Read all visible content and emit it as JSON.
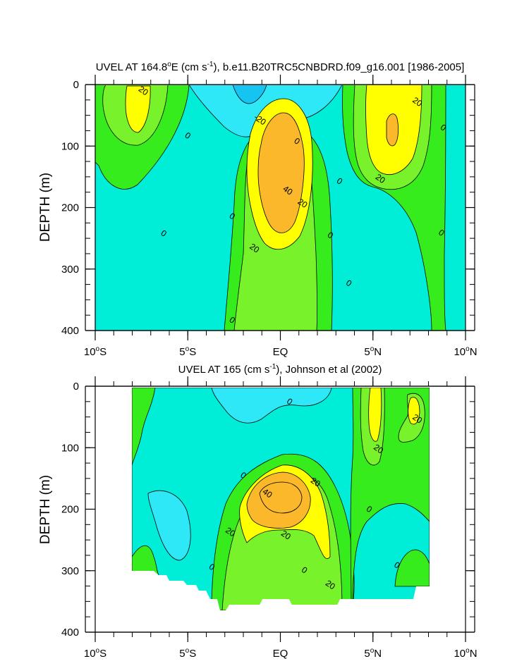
{
  "colors": {
    "c_neg20": "#16c4f2",
    "c_neg": "#2ee8f8",
    "c_0": "#00eed8",
    "c_10": "#36ec1c",
    "c_20": "#78f22a",
    "c_30": "#ffff00",
    "c_40": "#fbb82a",
    "line": "#000000"
  },
  "chart_data": [
    {
      "type": "contour",
      "id": "top",
      "title_prefix": "UVEL AT 164.8",
      "title_deg": "o",
      "title_mid": "E (cm s",
      "title_exp": "-1",
      "title_suffix": "), b.e11.B20TRC5CNBDRD.f09_g16.001 [1986-2005]",
      "ylabel": "DEPTH (m)",
      "ylim": [
        0,
        400
      ],
      "xlim": [
        -10,
        10
      ],
      "yticks": [
        "0",
        "100",
        "200",
        "300",
        "400"
      ],
      "xticks": [
        {
          "num": "10",
          "deg": "o",
          "hem": "S"
        },
        {
          "num": "5",
          "deg": "o",
          "hem": "S"
        },
        {
          "num": "EQ",
          "deg": "",
          "hem": ""
        },
        {
          "num": "5",
          "deg": "o",
          "hem": "N"
        },
        {
          "num": "10",
          "deg": "o",
          "hem": "N"
        }
      ],
      "contour_labels": [
        {
          "text": "20",
          "lon": -7.4,
          "depth": 10
        },
        {
          "text": "0",
          "lon": -5.0,
          "depth": 83
        },
        {
          "text": "-20",
          "lon": -1.1,
          "depth": 57
        },
        {
          "text": "0",
          "lon": 0.9,
          "depth": 92
        },
        {
          "text": "40",
          "lon": 0.4,
          "depth": 172
        },
        {
          "text": "20",
          "lon": 1.2,
          "depth": 193
        },
        {
          "text": "20",
          "lon": -1.4,
          "depth": 266
        },
        {
          "text": "0",
          "lon": -2.6,
          "depth": 214
        },
        {
          "text": "0",
          "lon": -6.3,
          "depth": 242
        },
        {
          "text": "0",
          "lon": -2.6,
          "depth": 383
        },
        {
          "text": "0",
          "lon": 3.2,
          "depth": 157
        },
        {
          "text": "0",
          "lon": 2.7,
          "depth": 245
        },
        {
          "text": "0",
          "lon": 3.7,
          "depth": 323
        },
        {
          "text": "20",
          "lon": 7.4,
          "depth": 28
        },
        {
          "text": "20",
          "lon": 5.4,
          "depth": 153
        },
        {
          "text": "0",
          "lon": 8.8,
          "depth": 70
        },
        {
          "text": "0",
          "lon": 8.7,
          "depth": 241
        }
      ]
    },
    {
      "type": "contour",
      "id": "bottom",
      "title_prefix": "UVEL AT 165 (cm s",
      "title_exp": "-1",
      "title_suffix": "), Johnson et al (2002)",
      "ylabel": "DEPTH (m)",
      "ylim": [
        0,
        400
      ],
      "xlim": [
        -10,
        10
      ],
      "yticks": [
        "0",
        "100",
        "200",
        "300",
        "400"
      ],
      "xticks": [
        {
          "num": "10",
          "deg": "o",
          "hem": "S"
        },
        {
          "num": "5",
          "deg": "o",
          "hem": "S"
        },
        {
          "num": "EQ",
          "deg": "",
          "hem": ""
        },
        {
          "num": "5",
          "deg": "o",
          "hem": "N"
        },
        {
          "num": "10",
          "deg": "o",
          "hem": "N"
        }
      ],
      "contour_labels": [
        {
          "text": "0",
          "lon": 0.5,
          "depth": 25
        },
        {
          "text": "0",
          "lon": -2.0,
          "depth": 145
        },
        {
          "text": "40",
          "lon": -0.7,
          "depth": 174
        },
        {
          "text": "20",
          "lon": 1.9,
          "depth": 156
        },
        {
          "text": "20",
          "lon": -2.7,
          "depth": 237
        },
        {
          "text": "20",
          "lon": 0.3,
          "depth": 242
        },
        {
          "text": "0",
          "lon": 4.8,
          "depth": 200
        },
        {
          "text": "0",
          "lon": -3.7,
          "depth": 294
        },
        {
          "text": "0",
          "lon": 1.3,
          "depth": 299
        },
        {
          "text": "20",
          "lon": 2.7,
          "depth": 323
        },
        {
          "text": "20",
          "lon": 7.4,
          "depth": 53
        },
        {
          "text": "20",
          "lon": 5.3,
          "depth": 102
        },
        {
          "text": "0",
          "lon": 6.3,
          "depth": 291
        }
      ]
    }
  ]
}
